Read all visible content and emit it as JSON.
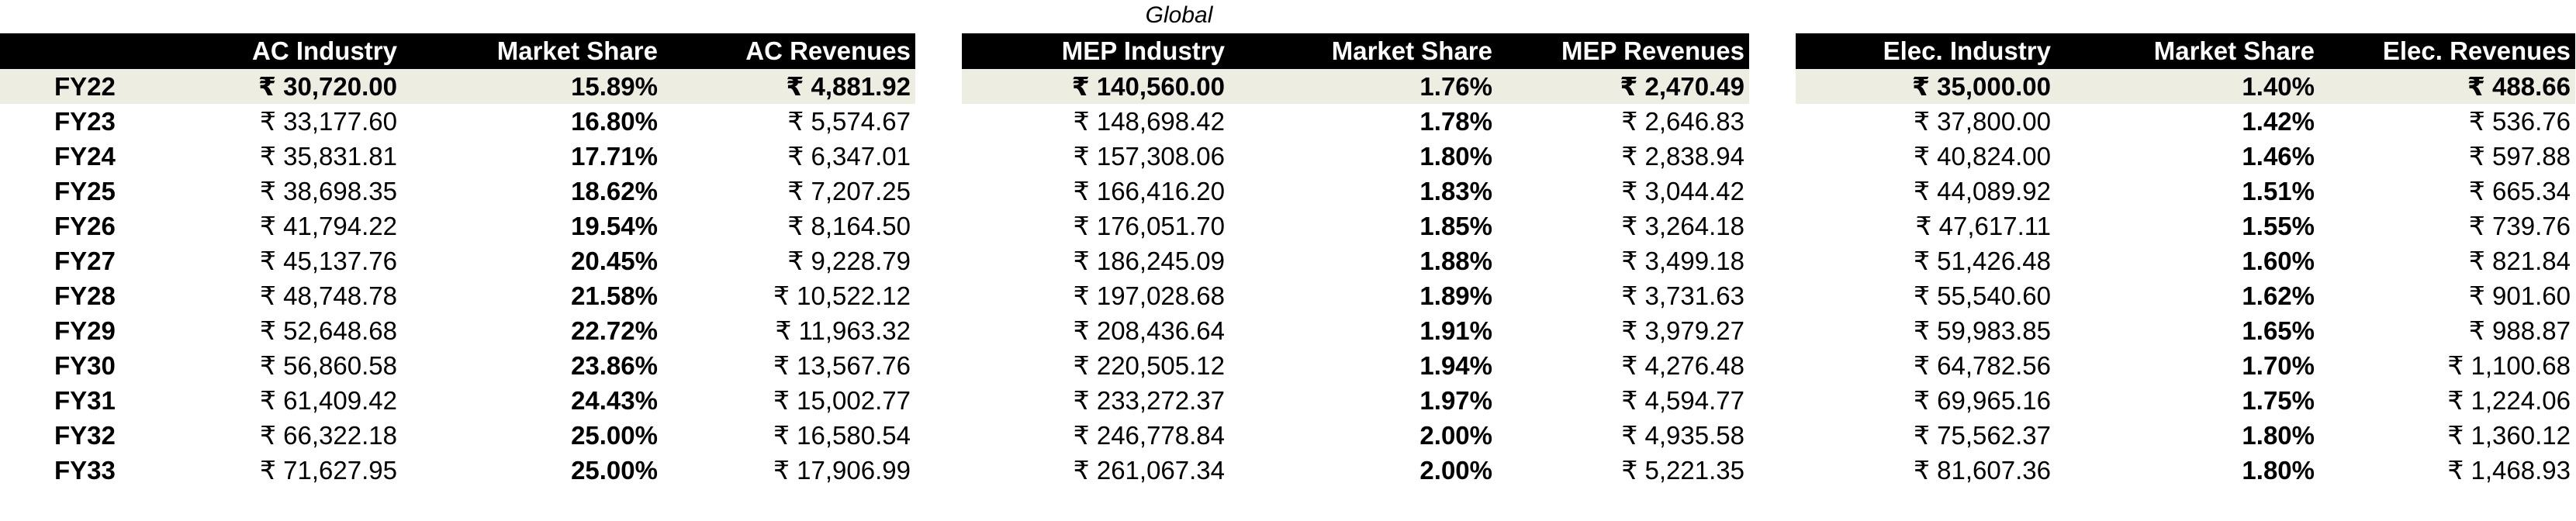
{
  "caption": "Global",
  "ac": {
    "headers": [
      "",
      "AC Industry",
      "Market Share",
      "AC Revenues"
    ],
    "rows": [
      {
        "year": "FY22",
        "industry": "₹ 30,720.00",
        "share": "15.89%",
        "revenue": "₹ 4,881.92"
      },
      {
        "year": "FY23",
        "industry": "₹ 33,177.60",
        "share": "16.80%",
        "revenue": "₹ 5,574.67"
      },
      {
        "year": "FY24",
        "industry": "₹ 35,831.81",
        "share": "17.71%",
        "revenue": "₹ 6,347.01"
      },
      {
        "year": "FY25",
        "industry": "₹ 38,698.35",
        "share": "18.62%",
        "revenue": "₹ 7,207.25"
      },
      {
        "year": "FY26",
        "industry": "₹ 41,794.22",
        "share": "19.54%",
        "revenue": "₹ 8,164.50"
      },
      {
        "year": "FY27",
        "industry": "₹ 45,137.76",
        "share": "20.45%",
        "revenue": "₹ 9,228.79"
      },
      {
        "year": "FY28",
        "industry": "₹ 48,748.78",
        "share": "21.58%",
        "revenue": "₹ 10,522.12"
      },
      {
        "year": "FY29",
        "industry": "₹ 52,648.68",
        "share": "22.72%",
        "revenue": "₹ 11,963.32"
      },
      {
        "year": "FY30",
        "industry": "₹ 56,860.58",
        "share": "23.86%",
        "revenue": "₹ 13,567.76"
      },
      {
        "year": "FY31",
        "industry": "₹ 61,409.42",
        "share": "24.43%",
        "revenue": "₹ 15,002.77"
      },
      {
        "year": "FY32",
        "industry": "₹ 66,322.18",
        "share": "25.00%",
        "revenue": "₹ 16,580.54"
      },
      {
        "year": "FY33",
        "industry": "₹ 71,627.95",
        "share": "25.00%",
        "revenue": "₹ 17,906.99"
      }
    ]
  },
  "mep": {
    "headers": [
      "MEP Industry",
      "Market Share",
      "MEP Revenues"
    ],
    "rows": [
      {
        "industry": "₹ 140,560.00",
        "share": "1.76%",
        "revenue": "₹ 2,470.49"
      },
      {
        "industry": "₹ 148,698.42",
        "share": "1.78%",
        "revenue": "₹ 2,646.83"
      },
      {
        "industry": "₹ 157,308.06",
        "share": "1.80%",
        "revenue": "₹ 2,838.94"
      },
      {
        "industry": "₹ 166,416.20",
        "share": "1.83%",
        "revenue": "₹ 3,044.42"
      },
      {
        "industry": "₹ 176,051.70",
        "share": "1.85%",
        "revenue": "₹ 3,264.18"
      },
      {
        "industry": "₹ 186,245.09",
        "share": "1.88%",
        "revenue": "₹ 3,499.18"
      },
      {
        "industry": "₹ 197,028.68",
        "share": "1.89%",
        "revenue": "₹ 3,731.63"
      },
      {
        "industry": "₹ 208,436.64",
        "share": "1.91%",
        "revenue": "₹ 3,979.27"
      },
      {
        "industry": "₹ 220,505.12",
        "share": "1.94%",
        "revenue": "₹ 4,276.48"
      },
      {
        "industry": "₹ 233,272.37",
        "share": "1.97%",
        "revenue": "₹ 4,594.77"
      },
      {
        "industry": "₹ 246,778.84",
        "share": "2.00%",
        "revenue": "₹ 4,935.58"
      },
      {
        "industry": "₹ 261,067.34",
        "share": "2.00%",
        "revenue": "₹ 5,221.35"
      }
    ]
  },
  "elec": {
    "headers": [
      "Elec. Industry",
      "Market Share",
      "Elec. Revenues"
    ],
    "rows": [
      {
        "industry": "₹ 35,000.00",
        "share": "1.40%",
        "revenue": "₹ 488.66"
      },
      {
        "industry": "₹ 37,800.00",
        "share": "1.42%",
        "revenue": "₹ 536.76"
      },
      {
        "industry": "₹ 40,824.00",
        "share": "1.46%",
        "revenue": "₹ 597.88"
      },
      {
        "industry": "₹ 44,089.92",
        "share": "1.51%",
        "revenue": "₹ 665.34"
      },
      {
        "industry": "₹ 47,617.11",
        "share": "1.55%",
        "revenue": "₹ 739.76"
      },
      {
        "industry": "₹ 51,426.48",
        "share": "1.60%",
        "revenue": "₹ 821.84"
      },
      {
        "industry": "₹ 55,540.60",
        "share": "1.62%",
        "revenue": "₹ 901.60"
      },
      {
        "industry": "₹ 59,983.85",
        "share": "1.65%",
        "revenue": "₹ 988.87"
      },
      {
        "industry": "₹ 64,782.56",
        "share": "1.70%",
        "revenue": "₹ 1,100.68"
      },
      {
        "industry": "₹ 69,965.16",
        "share": "1.75%",
        "revenue": "₹ 1,224.06"
      },
      {
        "industry": "₹ 75,562.37",
        "share": "1.80%",
        "revenue": "₹ 1,360.12"
      },
      {
        "industry": "₹ 81,607.36",
        "share": "1.80%",
        "revenue": "₹ 1,468.93"
      }
    ]
  }
}
